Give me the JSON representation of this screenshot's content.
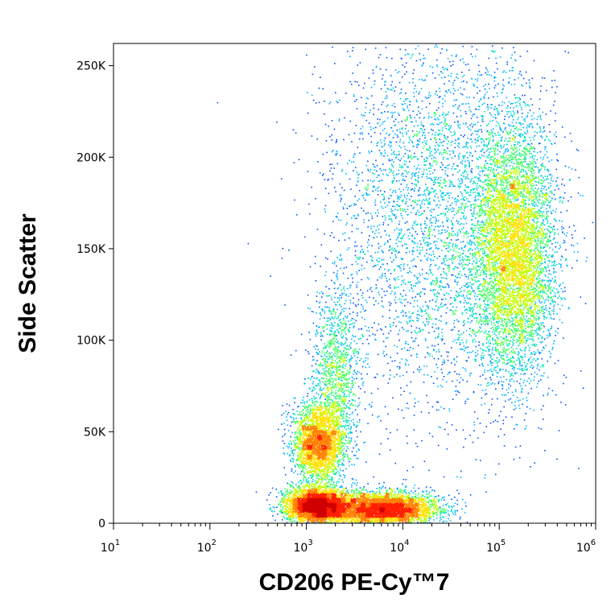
{
  "chart_data": {
    "type": "scatter",
    "subtype": "flow-cytometry-density-dot-plot",
    "xlabel": "CD206 PE-Cy™7",
    "ylabel": "Side Scatter",
    "x_scale": "log",
    "xlim": [
      10,
      1000000
    ],
    "ylim": [
      0,
      262144
    ],
    "x_ticks": [
      {
        "base": "10",
        "exp": "1",
        "value": 10
      },
      {
        "base": "10",
        "exp": "2",
        "value": 100
      },
      {
        "base": "10",
        "exp": "3",
        "value": 1000
      },
      {
        "base": "10",
        "exp": "4",
        "value": 10000
      },
      {
        "base": "10",
        "exp": "5",
        "value": 100000
      },
      {
        "base": "10",
        "exp": "6",
        "value": 1000000
      }
    ],
    "y_ticks": [
      {
        "label": "0",
        "value": 0
      },
      {
        "label": "50K",
        "value": 50000
      },
      {
        "label": "100K",
        "value": 100000
      },
      {
        "label": "150K",
        "value": 150000
      },
      {
        "label": "200K",
        "value": 200000
      },
      {
        "label": "250K",
        "value": 250000
      }
    ],
    "density_colors": [
      "#0000cc",
      "#0050ff",
      "#00b4ff",
      "#00e0c0",
      "#40ff60",
      "#c0ff00",
      "#ffe000",
      "#ff8000",
      "#ff2000",
      "#d00000"
    ],
    "populations": [
      {
        "x_center": 1300,
        "y_center": 10000,
        "x_log_sd": 0.16,
        "y_sd": 5000,
        "count": 4200
      },
      {
        "x_center": 6000,
        "y_center": 8000,
        "x_log_sd": 0.28,
        "y_sd": 4500,
        "count": 4200
      },
      {
        "x_center": 1300,
        "y_center": 45000,
        "x_log_sd": 0.13,
        "y_sd": 10000,
        "count": 2600
      },
      {
        "x_center": 140000,
        "y_center": 150000,
        "x_log_sd": 0.22,
        "y_sd": 35000,
        "count": 6000
      },
      {
        "x_center": 20000,
        "y_center": 170000,
        "x_log_sd": 0.55,
        "y_sd": 55000,
        "count": 3800
      },
      {
        "x_center": 2000,
        "y_center": 80000,
        "x_log_sd": 0.12,
        "y_sd": 25000,
        "count": 1200
      }
    ]
  }
}
